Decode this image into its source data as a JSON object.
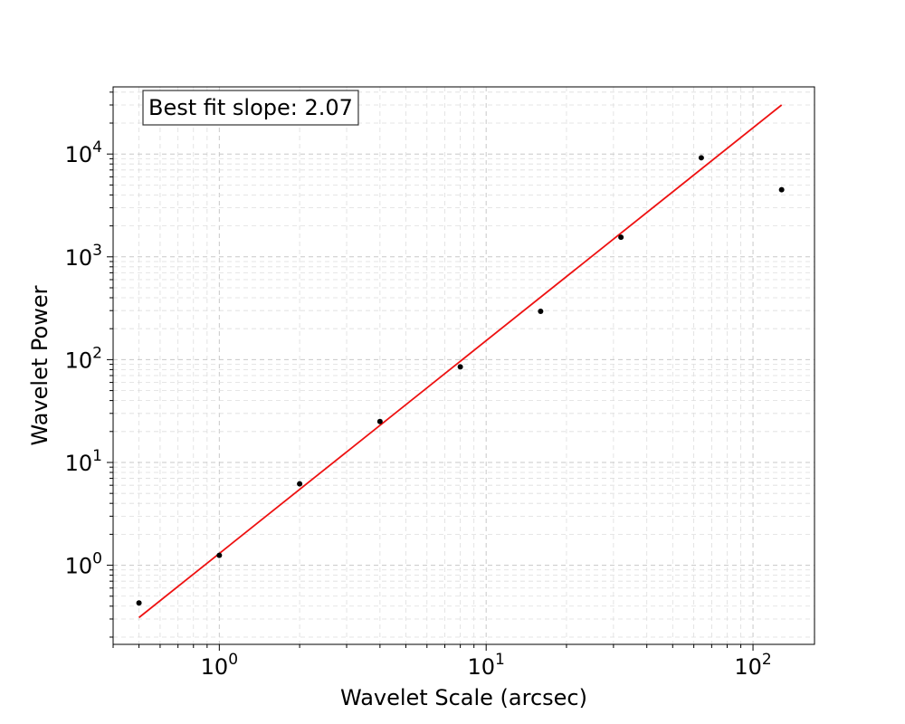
{
  "chart_data": {
    "type": "scatter",
    "xscale": "log",
    "yscale": "log",
    "xlim": [
      0.4,
      170
    ],
    "ylim": [
      0.17,
      45000
    ],
    "grid": true,
    "xlabel": "Wavelet Scale (arcsec)",
    "ylabel": "Wavelet Power",
    "xticks": [
      {
        "value": 1,
        "base": "10",
        "exp": "0"
      },
      {
        "value": 10,
        "base": "10",
        "exp": "1"
      },
      {
        "value": 100,
        "base": "10",
        "exp": "2"
      }
    ],
    "yticks": [
      {
        "value": 1,
        "base": "10",
        "exp": "0"
      },
      {
        "value": 10,
        "base": "10",
        "exp": "1"
      },
      {
        "value": 100,
        "base": "10",
        "exp": "2"
      },
      {
        "value": 1000,
        "base": "10",
        "exp": "3"
      },
      {
        "value": 10000,
        "base": "10",
        "exp": "4"
      }
    ],
    "series": [
      {
        "type": "scatter",
        "color": "#000000",
        "x": [
          0.5,
          1,
          2,
          4,
          8,
          16,
          32,
          64,
          128
        ],
        "y": [
          0.43,
          1.25,
          6.2,
          25,
          85,
          295,
          1550,
          9200,
          4500
        ]
      },
      {
        "type": "line",
        "color": "#ee1111",
        "x": [
          0.5,
          128
        ],
        "y": [
          0.31,
          30000
        ]
      }
    ],
    "annotation": {
      "text": "Best fit slope: 2.07",
      "placement": "top-left"
    }
  }
}
